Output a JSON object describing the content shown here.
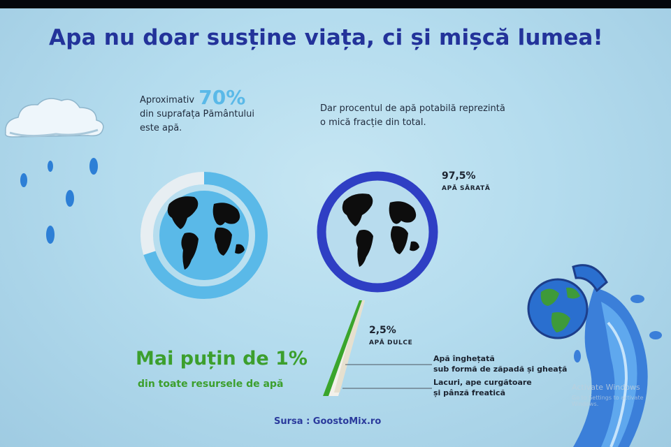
{
  "title": "Apa nu doar susține viața, ci și mișcă lumea!",
  "left_intro": {
    "prefix": "Aproximativ",
    "percent": "70%",
    "line2": "din suprafața Pământului",
    "line3": "este apă."
  },
  "right_intro": {
    "line1": "Dar procentul de apă potabilă reprezintă",
    "line2": "o mică fracție din total."
  },
  "left_ring": {
    "water_fraction": 0.7
  },
  "right_ring": {
    "salt_fraction": 0.975,
    "fresh_fraction": 0.025
  },
  "salt_label": {
    "value": "97,5%",
    "caption": "APĂ SĂRATĂ"
  },
  "fresh_label": {
    "value": "2,5%",
    "caption": "APĂ DULCE"
  },
  "fresh_breakdown": {
    "ice_line1": "Apă înghețată",
    "ice_line2": "sub formă de zăpadă și gheață",
    "liquid_line1": "Lacuri, ape curgătoare",
    "liquid_line2": "și pânză freatică"
  },
  "green_statement": {
    "headline": "Mai puțin de 1%",
    "subline": "din toate resursele de apă"
  },
  "source": "Sursa : GoostoMix.ro",
  "watermark": {
    "line1": "Activate Windows",
    "line2": "Go to Settings to activate Windows."
  },
  "colors": {
    "title": "#23339a",
    "accent_blue": "#5ab9e8",
    "ring_dark_blue": "#2f3fc4",
    "green": "#3c9f2d",
    "globe": "#0d0d0d"
  }
}
